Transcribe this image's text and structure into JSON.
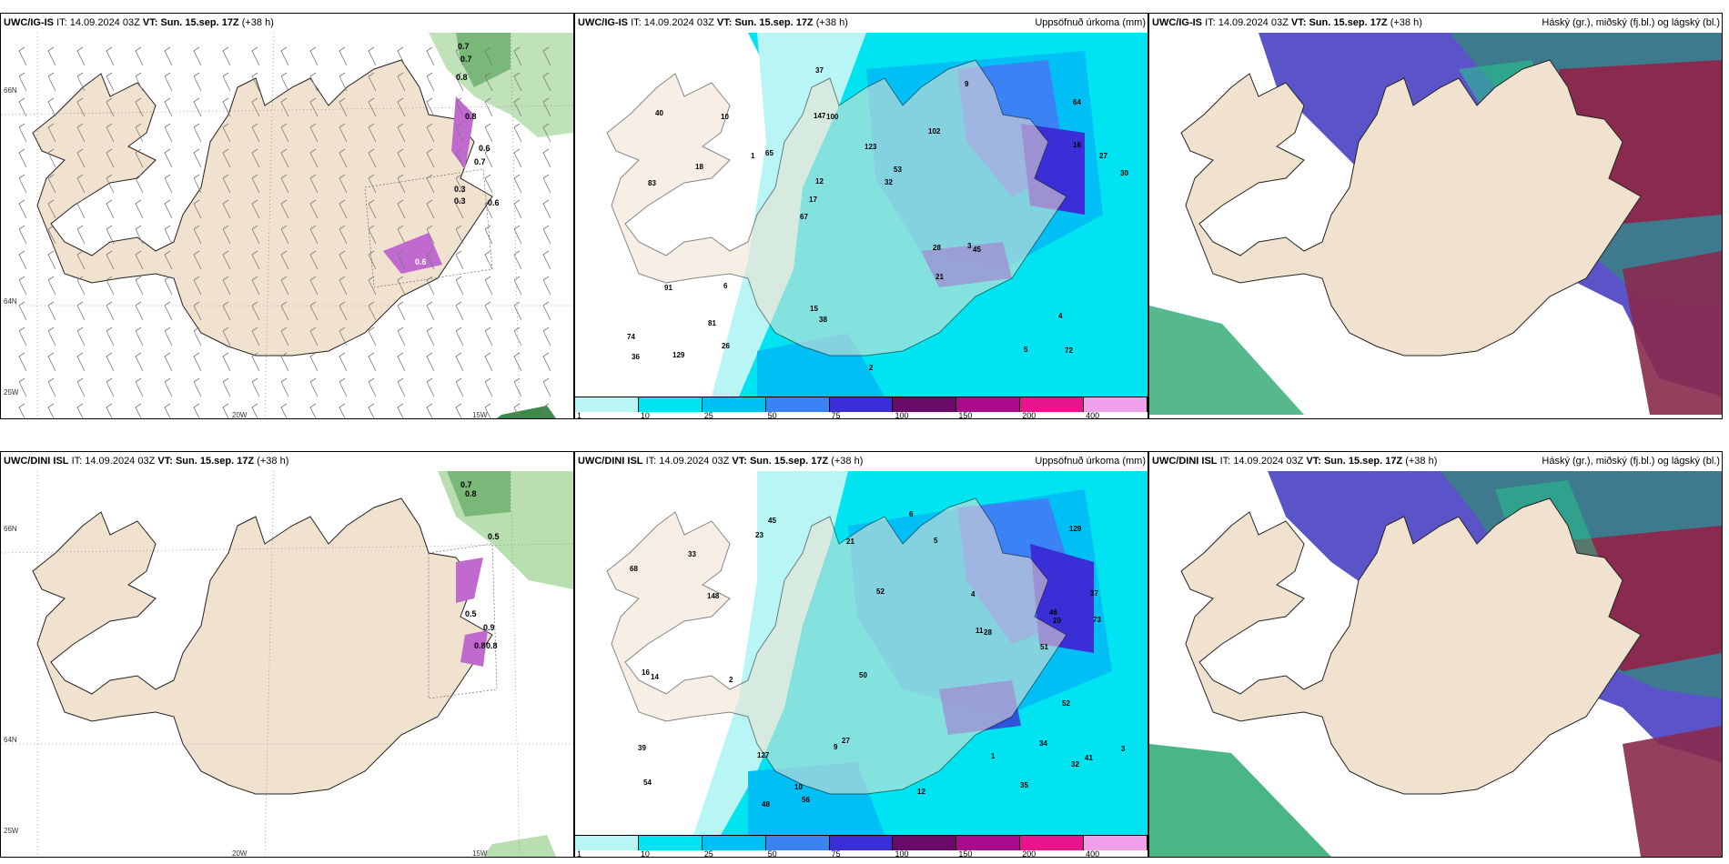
{
  "rows": [
    {
      "model": "UWC/IG-IS",
      "init_label": "IT:",
      "init_time": "14.09.2024 03Z",
      "valid_label": "VT:",
      "valid_time": "Sun. 15.sep. 17Z",
      "lead": "(+38 h)",
      "wind_values": [
        "0.7",
        "0.7",
        "0.8",
        "0.8",
        "0.6",
        "0.7",
        "0.3",
        "0.3",
        "0.6",
        "0.6"
      ],
      "precip_values": [
        "72",
        "83",
        "64",
        "67",
        "102",
        "129",
        "147",
        "123",
        "91",
        "65",
        "74",
        "81",
        "100",
        "53",
        "45",
        "40",
        "37",
        "30",
        "28",
        "16",
        "17",
        "15",
        "12",
        "10",
        "9",
        "6",
        "5",
        "4",
        "3",
        "2",
        "1",
        "18",
        "21",
        "26",
        "27",
        "32",
        "36",
        "38"
      ]
    },
    {
      "model": "UWC/DINI ISL",
      "init_label": "IT:",
      "init_time": "14.09.2024 03Z",
      "valid_label": "VT:",
      "valid_time": "Sun. 15.sep. 17Z",
      "lead": "(+38 h)",
      "wind_values": [
        "0.7",
        "0.8",
        "0.5",
        "0.5",
        "0.9",
        "0.8",
        "0.8"
      ],
      "precip_values": [
        "34",
        "37",
        "41",
        "52",
        "54",
        "45",
        "46",
        "127",
        "129",
        "148",
        "73",
        "68",
        "51",
        "56",
        "39",
        "33",
        "32",
        "23",
        "27",
        "20",
        "16",
        "14",
        "12",
        "11",
        "10",
        "9",
        "6",
        "5",
        "4",
        "3",
        "2",
        "1",
        "48",
        "50",
        "52",
        "35",
        "28",
        "21"
      ]
    }
  ],
  "precip_title": "Uppsöfnuð úrkoma (mm)",
  "cloud_title": "Háský (gr.), miðský (fj.bl.) og lágský (bl.)",
  "colorbar": {
    "ticks": [
      "1",
      "10",
      "25",
      "50",
      "75",
      "100",
      "150",
      "200",
      "400"
    ],
    "colors": [
      "#b9f5f5",
      "#00e3f0",
      "#00bff5",
      "#3b82f5",
      "#3a2fd6",
      "#6a0a68",
      "#aa0a8c",
      "#e8148c",
      "#f0a0ea"
    ]
  },
  "grid": {
    "lat_labels": [
      "66N",
      "64N"
    ],
    "lon_labels": [
      "20W",
      "15W",
      "25W"
    ]
  }
}
